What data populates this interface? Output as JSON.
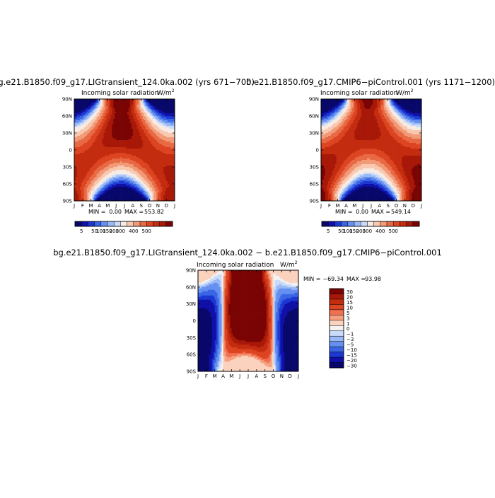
{
  "chart_data": [
    {
      "type": "heatmap",
      "title": "bg.e21.B1850.f09_g17.LIGtransient_124.0ka.002 (yrs 671−700)",
      "subtitle": "Incoming solar radiation",
      "units_base": "W/m",
      "units_sup": "2",
      "months": [
        "J",
        "F",
        "M",
        "A",
        "M",
        "J",
        "J",
        "A",
        "S",
        "O",
        "N",
        "D",
        "J"
      ],
      "lat_ticks": [
        "90N",
        "60N",
        "30N",
        "0",
        "30S",
        "60S",
        "90S"
      ],
      "min_label": "MIN =",
      "min_value": "0.00",
      "max_label": "MAX =",
      "max_value": "553.82",
      "legend_ticks": [
        "5",
        "50",
        "100",
        "150",
        "200",
        "300",
        "400",
        "500"
      ]
    },
    {
      "type": "heatmap",
      "title": "b.e21.B1850.f09_g17.CMIP6−piControl.001 (yrs 1171−1200)",
      "subtitle": "Incoming solar radiation",
      "units_base": "W/m",
      "units_sup": "2",
      "months": [
        "J",
        "F",
        "M",
        "A",
        "M",
        "J",
        "J",
        "A",
        "S",
        "O",
        "N",
        "D",
        "J"
      ],
      "lat_ticks": [
        "90N",
        "60N",
        "30N",
        "0",
        "30S",
        "60S",
        "90S"
      ],
      "min_label": "MIN =",
      "min_value": "0.00",
      "max_label": "MAX =",
      "max_value": "549.14",
      "legend_ticks": [
        "5",
        "50",
        "100",
        "150",
        "200",
        "300",
        "400",
        "500"
      ]
    },
    {
      "type": "heatmap",
      "title": "bg.e21.B1850.f09_g17.LIGtransient_124.0ka.002 − b.e21.B1850.f09_g17.CMIP6−piControl.001",
      "subtitle": "Incoming solar radiation",
      "units_base": "W/m",
      "units_sup": "2",
      "months": [
        "J",
        "F",
        "M",
        "A",
        "M",
        "J",
        "J",
        "A",
        "S",
        "O",
        "N",
        "D",
        "J"
      ],
      "lat_ticks": [
        "90N",
        "60N",
        "30N",
        "0",
        "30S",
        "60S",
        "90S"
      ],
      "min_label": "MIN =",
      "min_value": "−69.34",
      "max_label": "MAX =",
      "max_value": "93.98",
      "legend_ticks": [
        "30",
        "20",
        "15",
        "10",
        "5",
        "3",
        "1",
        "0",
        "−1",
        "−3",
        "−5",
        "−10",
        "−15",
        "−20",
        "−30"
      ]
    }
  ],
  "palettes": {
    "absolute": [
      "#08086b",
      "#1010a8",
      "#1c38d0",
      "#3a66e6",
      "#6690f0",
      "#9ab8f6",
      "#c8dcfa",
      "#f8ebe4",
      "#f8c8b0",
      "#f29a78",
      "#e86a44",
      "#dc4422",
      "#c42c10",
      "#a81808",
      "#7a0404"
    ],
    "difference": [
      "#7a0404",
      "#a81808",
      "#c42c10",
      "#dc4422",
      "#f07050",
      "#f6a080",
      "#fad2be",
      "#f2f2f2",
      "#c8dcfa",
      "#9ab8f6",
      "#6690f0",
      "#3a66e6",
      "#1c38d0",
      "#1010a8",
      "#08086b"
    ]
  }
}
